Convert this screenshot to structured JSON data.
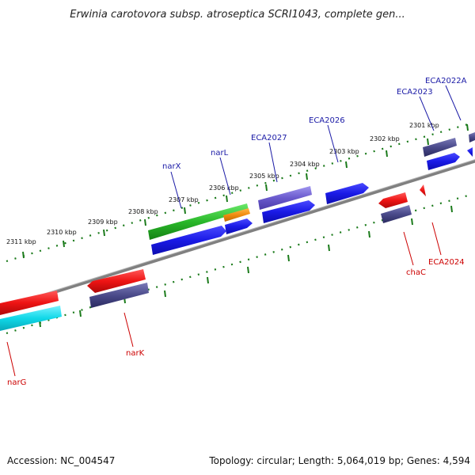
{
  "title": "Erwinia carotovora subsp. atroseptica SCRI1043, complete gen...",
  "accession_label": "Accession: NC_004547",
  "summary_label": "Topology: circular; Length: 5,064,019 bp; Genes: 4,594",
  "ticks": [
    "2301 kbp",
    "2302 kbp",
    "2303 kbp",
    "2304 kbp",
    "2305 kbp",
    "2306 kbp",
    "2307 kbp",
    "2308 kbp",
    "2309 kbp",
    "2310 kbp",
    "2311 kbp"
  ],
  "forward_gene_labels": [
    "ECA2022A",
    "ECA2023",
    "ECA2026",
    "ECA2027",
    "narL",
    "narX"
  ],
  "reverse_gene_labels": [
    "ECA2024",
    "chaC",
    "narK",
    "narG"
  ],
  "colors": {
    "forward_label": "#1a1aa6",
    "reverse_label": "#cc0000",
    "gene_blue": "#1414e0",
    "gene_red": "#e81010",
    "gene_purple": "#4a4a8a",
    "gene_lavender": "#6a5acd",
    "gene_green": "#2ab82a",
    "gene_orange": "#f08c10",
    "gene_cyan": "#10d8e8",
    "tick_green": "#1a7a1a",
    "backbone": "#808080"
  }
}
